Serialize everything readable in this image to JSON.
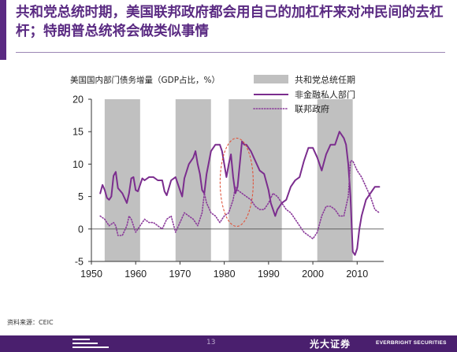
{
  "title": "共和党总统时期，美国联邦政府都会用自己的加杠杆来对冲民间的去杠杆；特朗普总统将会做类似事情",
  "source": "资料来源：CEIC",
  "footer": {
    "page_number": "13",
    "brand_cn": "光大证券",
    "brand_en": "EVERBRIGHT SECURITIES"
  },
  "colors": {
    "accent": "#5a2a82",
    "shade": "#c0c0c0",
    "private": "#7b2d8e",
    "federal": "#8a3a9a",
    "highlight": "#e0533a"
  },
  "chart_data": {
    "type": "line",
    "title": "美国国内部门债务增量（GDP占比，%）",
    "xlim": [
      1950,
      2016
    ],
    "ylim": [
      -5,
      20
    ],
    "xticks": [
      "1950",
      "1960",
      "1970",
      "1980",
      "1990",
      "2000",
      "2010"
    ],
    "yticks": [
      "20",
      "15",
      "10",
      "5",
      "0",
      "-5"
    ],
    "grid": false,
    "legend_position": "top-right",
    "shaded_label": "共和党总统任期",
    "republican_periods": [
      [
        1953,
        1961
      ],
      [
        1969,
        1977
      ],
      [
        1981,
        1993
      ],
      [
        2001,
        2009
      ]
    ],
    "annotation": "ellipse around 1981–1985 peak",
    "series": [
      {
        "name": "非金融私人部门",
        "style": "solid",
        "x": [
          1952,
          1952.5,
          1953,
          1953.5,
          1954,
          1954.5,
          1955,
          1955.5,
          1956,
          1957,
          1958,
          1958.5,
          1959,
          1959.5,
          1960,
          1960.5,
          1961,
          1961.5,
          1962,
          1963,
          1964,
          1965,
          1966,
          1966.5,
          1967,
          1968,
          1969,
          1970,
          1970.5,
          1971,
          1972,
          1973,
          1973.5,
          1974,
          1974.5,
          1975,
          1975.5,
          1976,
          1977,
          1978,
          1979,
          1979.5,
          1980,
          1980.5,
          1981,
          1981.5,
          1982,
          1982.5,
          1983,
          1984,
          1984.5,
          1985,
          1986,
          1987,
          1988,
          1989,
          1990,
          1990.5,
          1991,
          1991.5,
          1992,
          1993,
          1994,
          1995,
          1996,
          1997,
          1998,
          1999,
          2000,
          2001,
          2002,
          2003,
          2004,
          2005,
          2006,
          2007,
          2007.5,
          2008,
          2008.5,
          2009,
          2009.5,
          2010,
          2010.5,
          2011,
          2012,
          2013,
          2014,
          2015
        ],
        "y": [
          5.5,
          6.8,
          6.0,
          4.8,
          4.5,
          5.0,
          8.2,
          8.8,
          6.3,
          5.5,
          4.0,
          5.5,
          7.8,
          8.0,
          6.0,
          5.8,
          6.8,
          7.8,
          7.5,
          8.0,
          8.0,
          7.5,
          7.5,
          5.8,
          5.2,
          7.5,
          8.0,
          6.0,
          5.0,
          7.8,
          10.0,
          11.0,
          12.0,
          10.0,
          8.5,
          6.0,
          5.5,
          8.5,
          12.0,
          13.0,
          13.0,
          12.0,
          10.0,
          8.0,
          10.0,
          11.5,
          8.0,
          5.5,
          6.5,
          13.5,
          13.0,
          13.0,
          12.0,
          10.5,
          9.0,
          8.5,
          6.0,
          4.0,
          3.0,
          2.0,
          3.0,
          4.0,
          4.5,
          6.5,
          7.5,
          8.0,
          10.5,
          12.5,
          12.5,
          11.0,
          9.0,
          11.5,
          13.0,
          13.0,
          15.0,
          14.0,
          13.0,
          10.0,
          5.0,
          -3.5,
          -4.0,
          -3.0,
          0.0,
          2.0,
          4.5,
          5.5,
          6.5,
          6.5
        ]
      },
      {
        "name": "联邦政府",
        "style": "dotted",
        "x": [
          1952,
          1953,
          1954,
          1955,
          1955.5,
          1956,
          1957,
          1958,
          1958.5,
          1959,
          1960,
          1961,
          1962,
          1963,
          1964,
          1965,
          1966,
          1967,
          1968,
          1969,
          1970,
          1971,
          1972,
          1973,
          1974,
          1975,
          1975.5,
          1976,
          1977,
          1978,
          1979,
          1980,
          1981,
          1982,
          1982.5,
          1983,
          1984,
          1985,
          1986,
          1987,
          1988,
          1989,
          1990,
          1991,
          1992,
          1993,
          1994,
          1995,
          1996,
          1997,
          1998,
          1999,
          2000,
          2001,
          2002,
          2003,
          2004,
          2005,
          2006,
          2007,
          2008,
          2008.5,
          2009,
          2010,
          2011,
          2012,
          2013,
          2014,
          2015
        ],
        "y": [
          2.0,
          1.5,
          0.5,
          1.0,
          0.5,
          -1.0,
          -1.0,
          0.5,
          2.0,
          1.5,
          -0.5,
          0.5,
          1.5,
          1.0,
          1.0,
          0.5,
          0.0,
          1.5,
          2.0,
          -0.5,
          1.0,
          2.5,
          2.0,
          1.5,
          0.5,
          2.5,
          5.5,
          4.0,
          2.5,
          2.0,
          1.0,
          2.0,
          2.5,
          4.5,
          6.5,
          6.0,
          5.5,
          5.0,
          4.5,
          3.5,
          3.0,
          3.0,
          4.0,
          5.5,
          5.0,
          4.0,
          3.0,
          2.5,
          1.5,
          0.5,
          -0.5,
          -1.0,
          -1.5,
          -0.5,
          2.0,
          3.5,
          3.5,
          3.0,
          2.0,
          2.0,
          5.0,
          10.5,
          10.5,
          9.0,
          8.0,
          6.5,
          5.0,
          3.0,
          2.5
        ]
      }
    ]
  }
}
